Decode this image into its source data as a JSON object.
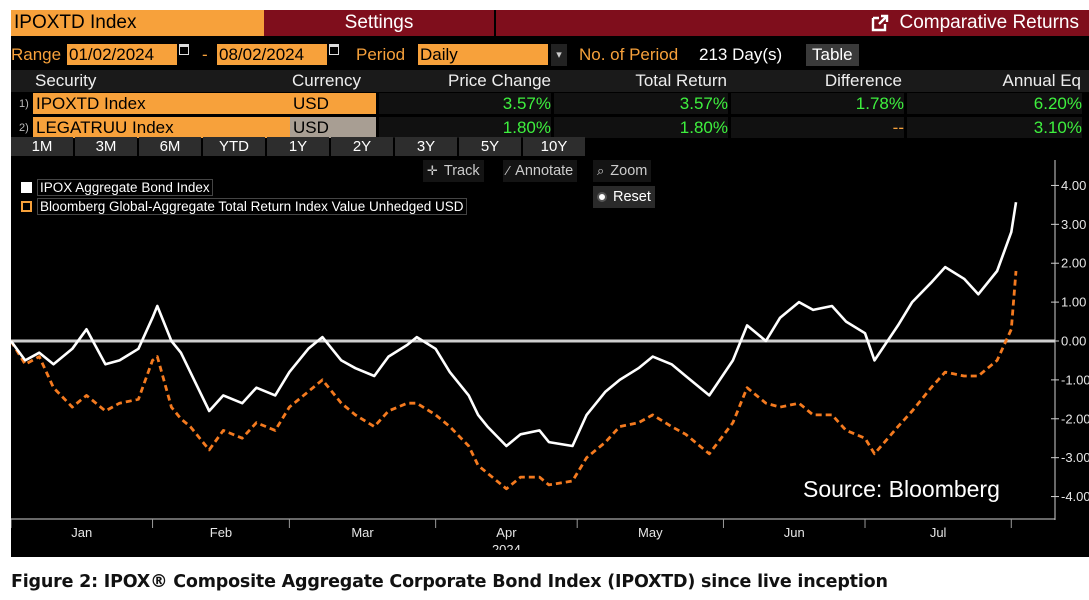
{
  "header": {
    "ticker": "IPOXTD Index",
    "settings_label": "Settings",
    "function_label": "Comparative Returns"
  },
  "controls": {
    "range_label": "Range",
    "range_start": "01/02/2024",
    "range_sep": "-",
    "range_end": "08/02/2024",
    "period_label": "Period",
    "period_value": "Daily",
    "num_period_label": "No. of Period",
    "num_period_value": "213 Day(s)",
    "table_button": "Table"
  },
  "table": {
    "headers": [
      "Security",
      "Currency",
      "Price Change",
      "Total Return",
      "Difference",
      "Annual Eq"
    ],
    "rows": [
      {
        "index": "1)",
        "security": "IPOXTD Index",
        "currency": "USD",
        "price_change": "3.57%",
        "total_return": "3.57%",
        "difference": "1.78%",
        "annual_eq": "6.20%"
      },
      {
        "index": "2)",
        "security": "LEGATRUU Index",
        "currency": "USD",
        "price_change": "1.80%",
        "total_return": "1.80%",
        "difference": "--",
        "annual_eq": "3.10%"
      }
    ]
  },
  "period_buttons": [
    "1M",
    "3M",
    "6M",
    "YTD",
    "1Y",
    "2Y",
    "3Y",
    "5Y",
    "10Y"
  ],
  "chart_tools": {
    "track": "Track",
    "annotate": "Annotate",
    "zoom": "Zoom",
    "reset": "Reset"
  },
  "source_note": "Source: Bloomberg",
  "caption": "Figure 2: IPOX® Composite Aggregate Corporate Bond Index (IPOXTD) since live inception",
  "colors": {
    "accent_orange": "#f7a13b",
    "title_bar": "#7f0e1c",
    "positive_green": "#3ef03e",
    "series_1": "#ffffff",
    "series_2": "#f47a1f"
  },
  "chart_data": {
    "type": "line",
    "xlabel": "2024",
    "ylabel": "",
    "ylim": [
      -4.5,
      4.5
    ],
    "y_ticks": [
      "4.00",
      "3.00",
      "2.00",
      "1.00",
      "0.00",
      "-1.00",
      "-2.00",
      "-3.00",
      "-4.00"
    ],
    "x_ticks": [
      "Jan",
      "Feb",
      "Mar",
      "Apr",
      "May",
      "Jun",
      "Jul"
    ],
    "x_month_bounds": [
      "Jan",
      "Feb",
      "Mar",
      "Apr",
      "May",
      "Jun",
      "Jul",
      "Aug"
    ],
    "baseline": 0,
    "legend_position": "top-left",
    "grid": false,
    "series": [
      {
        "name": "IPOX Aggregate Bond Index",
        "style": "solid",
        "points": [
          [
            "2024-01-02",
            0.0
          ],
          [
            "2024-01-05",
            -0.5
          ],
          [
            "2024-01-08",
            -0.3
          ],
          [
            "2024-01-11",
            -0.6
          ],
          [
            "2024-01-15",
            -0.2
          ],
          [
            "2024-01-18",
            0.3
          ],
          [
            "2024-01-22",
            -0.6
          ],
          [
            "2024-01-25",
            -0.5
          ],
          [
            "2024-01-29",
            -0.2
          ],
          [
            "2024-02-01",
            0.6
          ],
          [
            "2024-02-02",
            0.9
          ],
          [
            "2024-02-05",
            0.0
          ],
          [
            "2024-02-07",
            -0.3
          ],
          [
            "2024-02-09",
            -0.8
          ],
          [
            "2024-02-13",
            -1.8
          ],
          [
            "2024-02-16",
            -1.4
          ],
          [
            "2024-02-20",
            -1.6
          ],
          [
            "2024-02-23",
            -1.2
          ],
          [
            "2024-02-27",
            -1.4
          ],
          [
            "2024-03-01",
            -0.8
          ],
          [
            "2024-03-05",
            -0.2
          ],
          [
            "2024-03-08",
            0.1
          ],
          [
            "2024-03-12",
            -0.5
          ],
          [
            "2024-03-15",
            -0.7
          ],
          [
            "2024-03-19",
            -0.9
          ],
          [
            "2024-03-22",
            -0.4
          ],
          [
            "2024-03-26",
            -0.1
          ],
          [
            "2024-03-28",
            0.1
          ],
          [
            "2024-04-01",
            -0.2
          ],
          [
            "2024-04-04",
            -0.8
          ],
          [
            "2024-04-08",
            -1.4
          ],
          [
            "2024-04-10",
            -1.9
          ],
          [
            "2024-04-12",
            -2.2
          ],
          [
            "2024-04-16",
            -2.7
          ],
          [
            "2024-04-19",
            -2.4
          ],
          [
            "2024-04-23",
            -2.3
          ],
          [
            "2024-04-25",
            -2.6
          ],
          [
            "2024-04-30",
            -2.7
          ],
          [
            "2024-05-03",
            -1.9
          ],
          [
            "2024-05-07",
            -1.3
          ],
          [
            "2024-05-10",
            -1.0
          ],
          [
            "2024-05-14",
            -0.7
          ],
          [
            "2024-05-17",
            -0.4
          ],
          [
            "2024-05-21",
            -0.6
          ],
          [
            "2024-05-24",
            -0.9
          ],
          [
            "2024-05-29",
            -1.4
          ],
          [
            "2024-06-03",
            -0.5
          ],
          [
            "2024-06-06",
            0.4
          ],
          [
            "2024-06-10",
            0.0
          ],
          [
            "2024-06-13",
            0.6
          ],
          [
            "2024-06-17",
            1.0
          ],
          [
            "2024-06-20",
            0.8
          ],
          [
            "2024-06-24",
            0.9
          ],
          [
            "2024-06-27",
            0.5
          ],
          [
            "2024-07-01",
            0.2
          ],
          [
            "2024-07-03",
            -0.5
          ],
          [
            "2024-07-08",
            0.4
          ],
          [
            "2024-07-11",
            1.0
          ],
          [
            "2024-07-15",
            1.5
          ],
          [
            "2024-07-18",
            1.9
          ],
          [
            "2024-07-22",
            1.6
          ],
          [
            "2024-07-25",
            1.2
          ],
          [
            "2024-07-29",
            1.8
          ],
          [
            "2024-08-01",
            2.8
          ],
          [
            "2024-08-02",
            3.57
          ]
        ]
      },
      {
        "name": "Bloomberg Global-Aggregate Total Return Index Value Unhedged USD",
        "style": "dashed",
        "points": [
          [
            "2024-01-02",
            0.0
          ],
          [
            "2024-01-05",
            -0.6
          ],
          [
            "2024-01-08",
            -0.4
          ],
          [
            "2024-01-11",
            -1.2
          ],
          [
            "2024-01-15",
            -1.7
          ],
          [
            "2024-01-18",
            -1.4
          ],
          [
            "2024-01-22",
            -1.8
          ],
          [
            "2024-01-25",
            -1.6
          ],
          [
            "2024-01-29",
            -1.5
          ],
          [
            "2024-02-01",
            -0.5
          ],
          [
            "2024-02-02",
            -0.4
          ],
          [
            "2024-02-05",
            -1.7
          ],
          [
            "2024-02-07",
            -2.0
          ],
          [
            "2024-02-09",
            -2.2
          ],
          [
            "2024-02-13",
            -2.8
          ],
          [
            "2024-02-16",
            -2.3
          ],
          [
            "2024-02-20",
            -2.5
          ],
          [
            "2024-02-23",
            -2.1
          ],
          [
            "2024-02-27",
            -2.3
          ],
          [
            "2024-03-01",
            -1.7
          ],
          [
            "2024-03-05",
            -1.3
          ],
          [
            "2024-03-08",
            -1.0
          ],
          [
            "2024-03-12",
            -1.6
          ],
          [
            "2024-03-15",
            -1.9
          ],
          [
            "2024-03-19",
            -2.2
          ],
          [
            "2024-03-22",
            -1.8
          ],
          [
            "2024-03-26",
            -1.6
          ],
          [
            "2024-03-28",
            -1.6
          ],
          [
            "2024-04-01",
            -1.9
          ],
          [
            "2024-04-04",
            -2.2
          ],
          [
            "2024-04-08",
            -2.7
          ],
          [
            "2024-04-10",
            -3.2
          ],
          [
            "2024-04-12",
            -3.4
          ],
          [
            "2024-04-16",
            -3.8
          ],
          [
            "2024-04-19",
            -3.5
          ],
          [
            "2024-04-23",
            -3.5
          ],
          [
            "2024-04-25",
            -3.7
          ],
          [
            "2024-04-30",
            -3.6
          ],
          [
            "2024-05-03",
            -3.0
          ],
          [
            "2024-05-07",
            -2.6
          ],
          [
            "2024-05-10",
            -2.2
          ],
          [
            "2024-05-14",
            -2.1
          ],
          [
            "2024-05-17",
            -1.9
          ],
          [
            "2024-05-21",
            -2.2
          ],
          [
            "2024-05-24",
            -2.4
          ],
          [
            "2024-05-29",
            -2.9
          ],
          [
            "2024-06-03",
            -2.1
          ],
          [
            "2024-06-06",
            -1.2
          ],
          [
            "2024-06-10",
            -1.6
          ],
          [
            "2024-06-13",
            -1.7
          ],
          [
            "2024-06-17",
            -1.6
          ],
          [
            "2024-06-20",
            -1.9
          ],
          [
            "2024-06-24",
            -1.9
          ],
          [
            "2024-06-27",
            -2.3
          ],
          [
            "2024-07-01",
            -2.5
          ],
          [
            "2024-07-03",
            -2.9
          ],
          [
            "2024-07-08",
            -2.2
          ],
          [
            "2024-07-11",
            -1.8
          ],
          [
            "2024-07-15",
            -1.2
          ],
          [
            "2024-07-18",
            -0.8
          ],
          [
            "2024-07-22",
            -0.9
          ],
          [
            "2024-07-25",
            -0.9
          ],
          [
            "2024-07-29",
            -0.5
          ],
          [
            "2024-08-01",
            0.3
          ],
          [
            "2024-08-02",
            1.8
          ]
        ]
      }
    ]
  }
}
